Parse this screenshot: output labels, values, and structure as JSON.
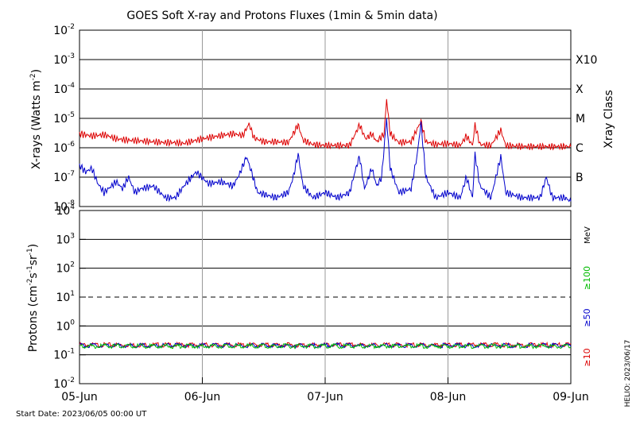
{
  "chart_data": [
    {
      "type": "line",
      "title": "GOES Soft X-ray and Protons Fluxes   (1min & 5min data)",
      "ylabel_main": "X-rays (Watts m",
      "ylabel_sup": "-2",
      "yscale": "log",
      "ylim": [
        1e-08,
        0.01
      ],
      "tick_exponents": [
        "-8",
        "-7",
        "-6",
        "-5",
        "-4",
        "-3",
        "-2"
      ],
      "tick_base": "10",
      "right_axis_label": "Xray Class",
      "class_labels": [
        {
          "label": "B",
          "value": 1e-07
        },
        {
          "label": "C",
          "value": 1e-06
        },
        {
          "label": "M",
          "value": 1e-05
        },
        {
          "label": "X",
          "value": 0.0001
        },
        {
          "label": "X10",
          "value": 0.001
        }
      ],
      "x_range_days": [
        0,
        4
      ],
      "series": [
        {
          "color": "#dd0000",
          "points": [
            [
              0,
              3e-06
            ],
            [
              0.1,
              2.5e-06
            ],
            [
              0.2,
              2.8e-06
            ],
            [
              0.3,
              2e-06
            ],
            [
              0.4,
              1.8e-06
            ],
            [
              0.5,
              1.7e-06
            ],
            [
              0.6,
              1.6e-06
            ],
            [
              0.7,
              1.5e-06
            ],
            [
              0.78,
              1.5e-06
            ],
            [
              0.85,
              1.4e-06
            ],
            [
              0.95,
              1.8e-06
            ],
            [
              1.05,
              2.2e-06
            ],
            [
              1.15,
              2.6e-06
            ],
            [
              1.25,
              3e-06
            ],
            [
              1.33,
              2.6e-06
            ],
            [
              1.38,
              6.5e-06
            ],
            [
              1.42,
              2.2e-06
            ],
            [
              1.5,
              1.6e-06
            ],
            [
              1.6,
              1.6e-06
            ],
            [
              1.7,
              1.5e-06
            ],
            [
              1.78,
              6e-06
            ],
            [
              1.82,
              1.8e-06
            ],
            [
              1.9,
              1.3e-06
            ],
            [
              2.0,
              1.2e-06
            ],
            [
              2.05,
              1.2e-06
            ],
            [
              2.1,
              1.2e-06
            ],
            [
              2.2,
              1.2e-06
            ],
            [
              2.28,
              6e-06
            ],
            [
              2.33,
              2e-06
            ],
            [
              2.38,
              3e-06
            ],
            [
              2.42,
              1.6e-06
            ],
            [
              2.48,
              3e-06
            ],
            [
              2.5,
              4.5e-05
            ],
            [
              2.53,
              3e-06
            ],
            [
              2.6,
              1.5e-06
            ],
            [
              2.7,
              1.6e-06
            ],
            [
              2.78,
              8e-06
            ],
            [
              2.82,
              1.6e-06
            ],
            [
              2.9,
              1.3e-06
            ],
            [
              3.0,
              1.4e-06
            ],
            [
              3.1,
              1.2e-06
            ],
            [
              3.15,
              2.5e-06
            ],
            [
              3.2,
              1.2e-06
            ],
            [
              3.22,
              6e-06
            ],
            [
              3.26,
              1.3e-06
            ],
            [
              3.35,
              1.2e-06
            ],
            [
              3.43,
              4e-06
            ],
            [
              3.47,
              1.2e-06
            ],
            [
              3.6,
              1.1e-06
            ],
            [
              3.75,
              1.1e-06
            ],
            [
              3.9,
              1.1e-06
            ],
            [
              4.0,
              1.1e-06
            ]
          ]
        },
        {
          "color": "#0000cc",
          "points": [
            [
              0,
              2.5e-07
            ],
            [
              0.05,
              1.5e-07
            ],
            [
              0.1,
              2e-07
            ],
            [
              0.15,
              6e-08
            ],
            [
              0.2,
              3e-08
            ],
            [
              0.3,
              7e-08
            ],
            [
              0.35,
              4e-08
            ],
            [
              0.4,
              1e-07
            ],
            [
              0.45,
              3e-08
            ],
            [
              0.5,
              4e-08
            ],
            [
              0.6,
              5e-08
            ],
            [
              0.7,
              2e-08
            ],
            [
              0.78,
              2e-08
            ],
            [
              0.85,
              5e-08
            ],
            [
              0.95,
              1.5e-07
            ],
            [
              1.05,
              6e-08
            ],
            [
              1.15,
              7e-08
            ],
            [
              1.25,
              5e-08
            ],
            [
              1.3,
              1.2e-07
            ],
            [
              1.36,
              5e-07
            ],
            [
              1.4,
              1.5e-07
            ],
            [
              1.45,
              3e-08
            ],
            [
              1.6,
              2e-08
            ],
            [
              1.7,
              3e-08
            ],
            [
              1.74,
              1e-07
            ],
            [
              1.78,
              6e-07
            ],
            [
              1.82,
              5e-08
            ],
            [
              1.9,
              2e-08
            ],
            [
              2.0,
              3e-08
            ],
            [
              2.1,
              2e-08
            ],
            [
              2.2,
              3e-08
            ],
            [
              2.25,
              2e-07
            ],
            [
              2.28,
              5e-07
            ],
            [
              2.32,
              4e-08
            ],
            [
              2.38,
              2e-07
            ],
            [
              2.42,
              5e-08
            ],
            [
              2.46,
              1e-07
            ],
            [
              2.5,
              1e-05
            ],
            [
              2.53,
              2e-07
            ],
            [
              2.6,
              3e-08
            ],
            [
              2.7,
              4e-08
            ],
            [
              2.75,
              6e-07
            ],
            [
              2.78,
              7e-06
            ],
            [
              2.82,
              1e-07
            ],
            [
              2.9,
              2e-08
            ],
            [
              3.0,
              3e-08
            ],
            [
              3.1,
              2e-08
            ],
            [
              3.15,
              1e-07
            ],
            [
              3.2,
              2e-08
            ],
            [
              3.22,
              6e-07
            ],
            [
              3.26,
              5e-08
            ],
            [
              3.35,
              2e-08
            ],
            [
              3.43,
              5e-07
            ],
            [
              3.47,
              3e-08
            ],
            [
              3.6,
              2e-08
            ],
            [
              3.75,
              2e-08
            ],
            [
              3.8,
              1e-07
            ],
            [
              3.85,
              2e-08
            ],
            [
              3.95,
              2e-08
            ],
            [
              4.0,
              1.5e-08
            ]
          ]
        }
      ]
    },
    {
      "type": "line",
      "ylabel_main": "Protons (cm",
      "ylabel_parts": [
        "Protons (cm",
        "-2",
        "s",
        "-1",
        "sr",
        "-1",
        ")"
      ],
      "yscale": "log",
      "ylim": [
        0.01,
        10000
      ],
      "tick_exponents": [
        "-2",
        "-1",
        "0",
        "1",
        "2",
        "3",
        "4"
      ],
      "tick_base": "10",
      "threshold_line": 10,
      "energy_unit": "MeV",
      "energy_labels": [
        {
          "label": "≥100",
          "color": "#00bb00"
        },
        {
          "label": "≥50",
          "color": "#0000cc"
        },
        {
          "label": "≥10",
          "color": "#dd0000"
        }
      ],
      "series": [
        {
          "label": "≥10",
          "color": "#dd0000",
          "baseline": 0.22
        },
        {
          "label": "≥50",
          "color": "#0000cc",
          "baseline": 0.21
        },
        {
          "label": "≥100",
          "color": "#00bb00",
          "baseline": 0.2
        }
      ]
    }
  ],
  "x_axis": {
    "ticks": [
      "05-Jun",
      "06-Jun",
      "07-Jun",
      "08-Jun",
      "09-Jun"
    ]
  },
  "footer": {
    "start_date": "Start Date: 2023/06/05 00:00 UT",
    "credit": "HELIO: 2023/06/17"
  }
}
